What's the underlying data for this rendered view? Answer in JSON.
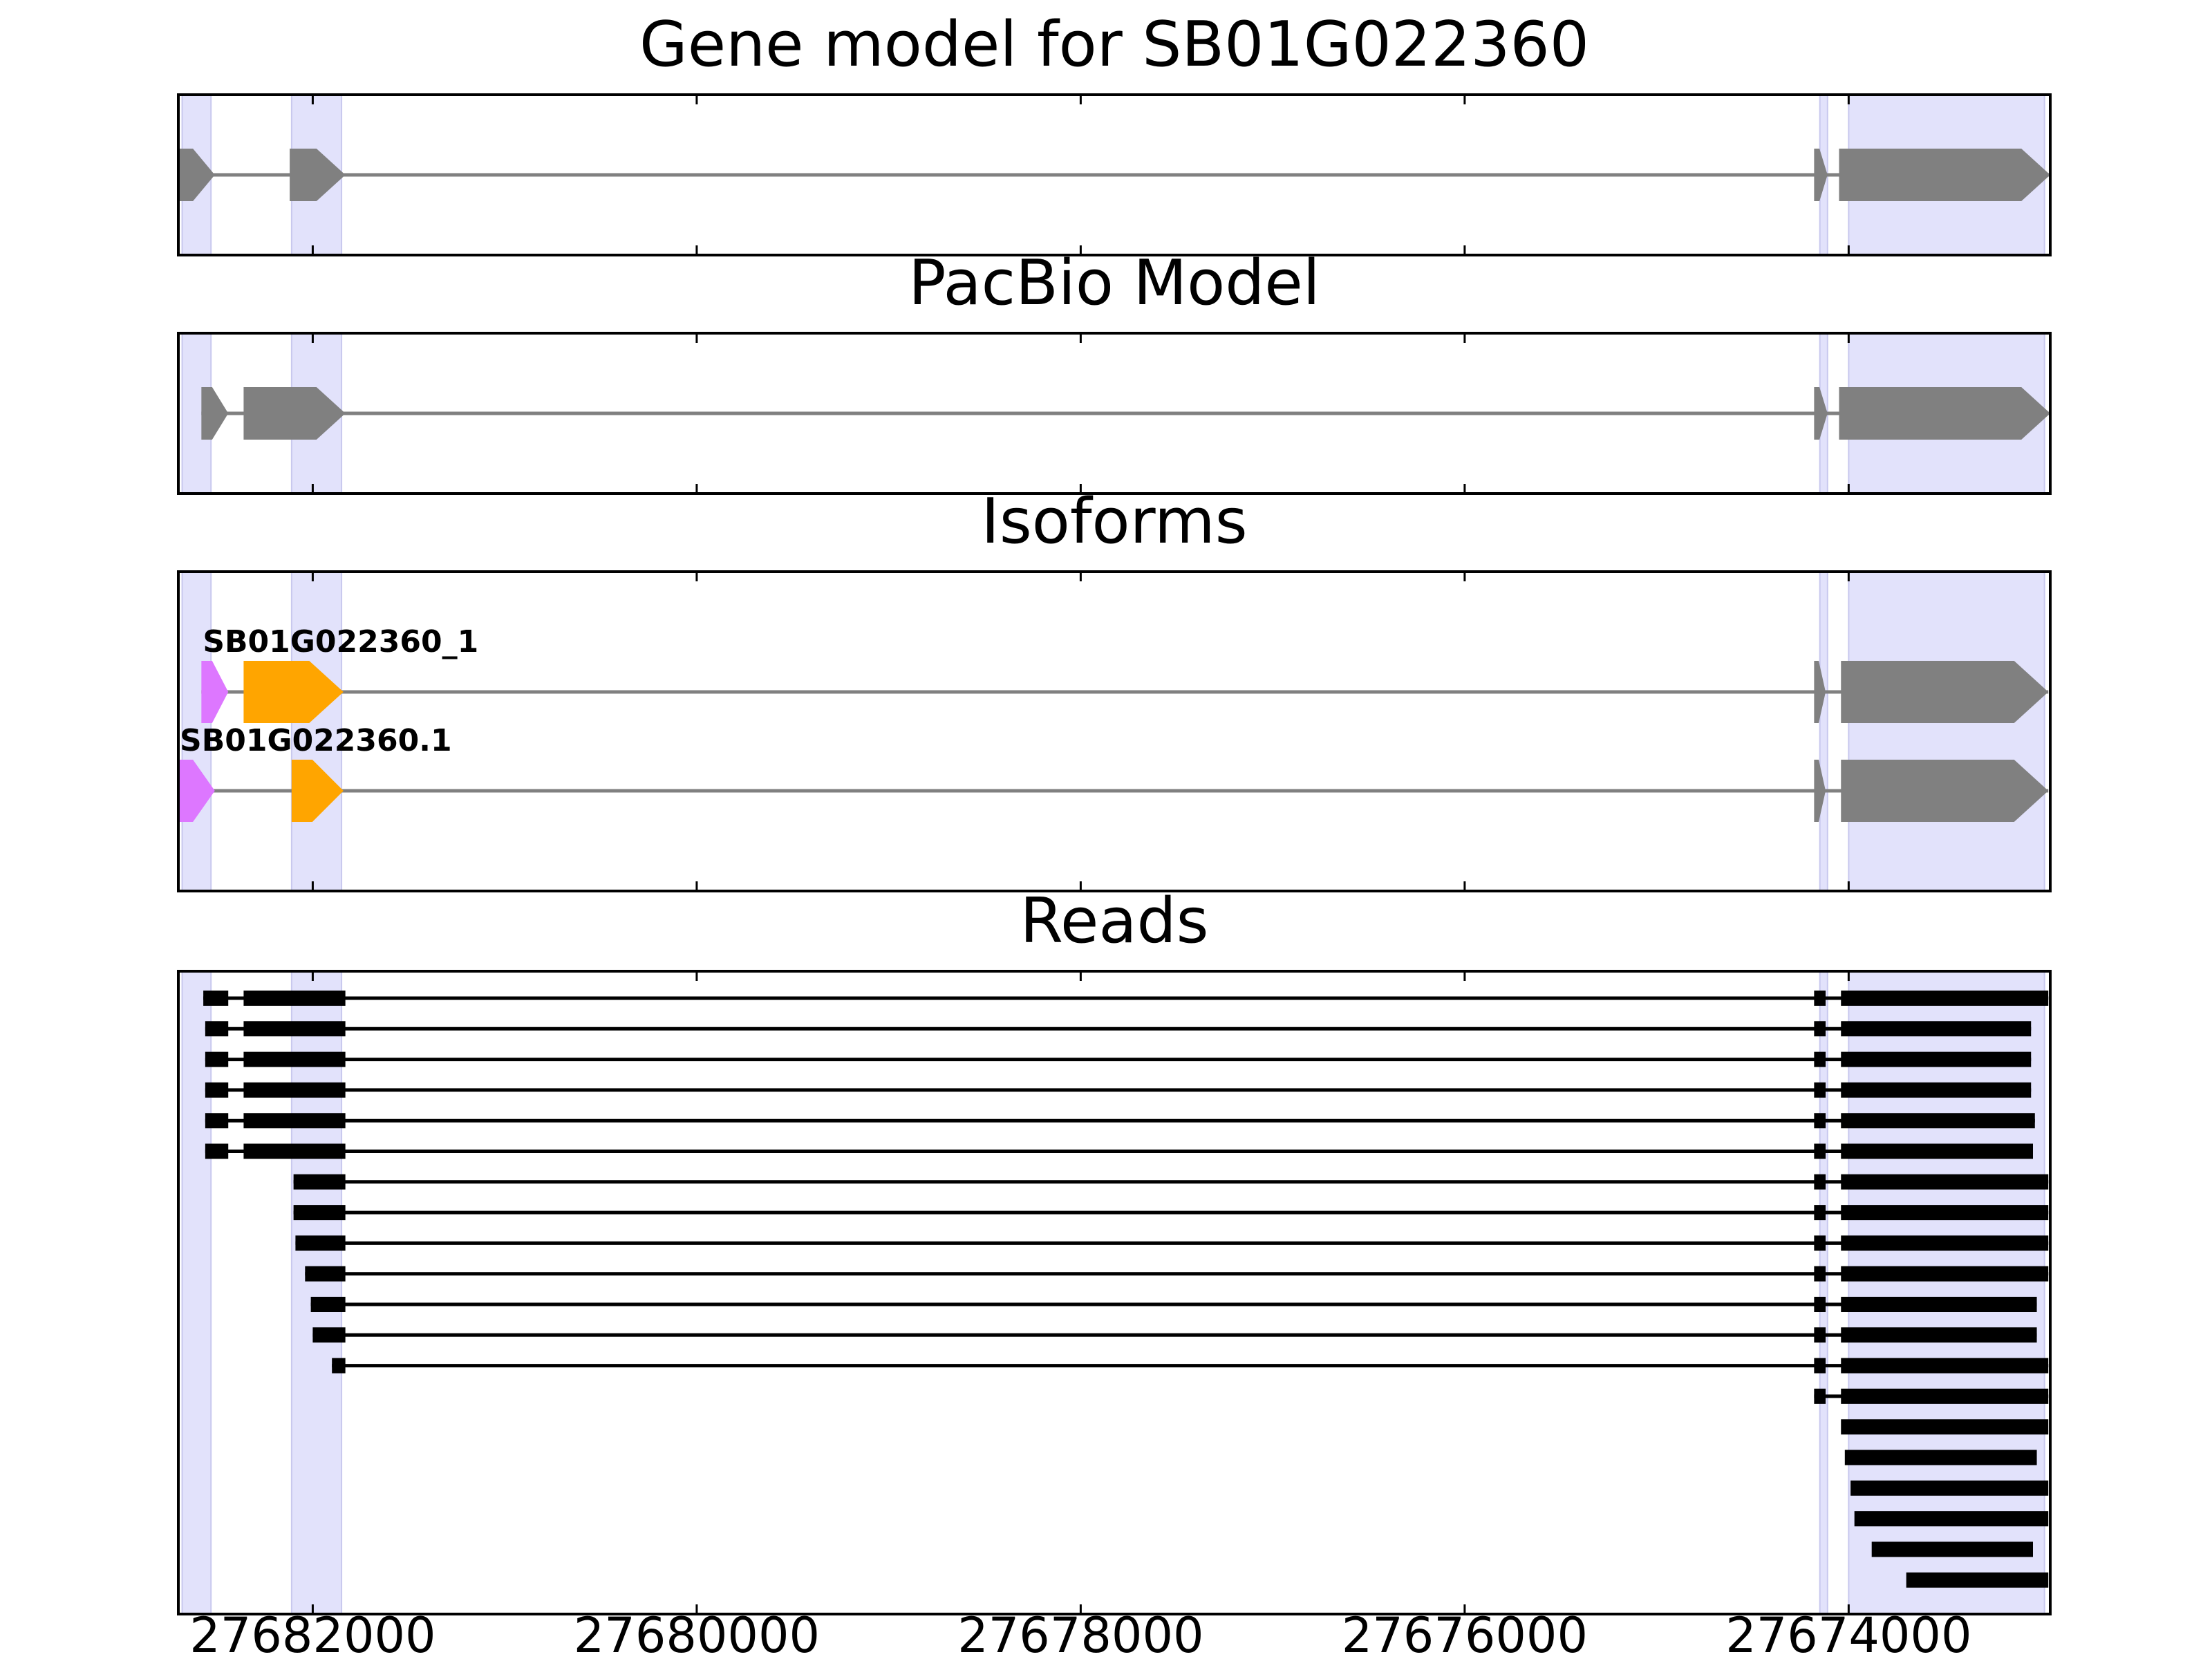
{
  "figure": {
    "panel_titles": [
      "Gene model for SB01G022360",
      "PacBio Model",
      "Isoforms",
      "Reads"
    ]
  },
  "colors": {
    "shade": "#e2e2fb",
    "shade_edge": "#c8c8ee",
    "model": "#808080",
    "utr5": "#dd77ff",
    "cds": "#ffa500",
    "reads": "#000000"
  },
  "chart_data": {
    "type": "gene-structure",
    "x_reversed": true,
    "xlim": [
      27682700,
      27672950
    ],
    "xticks": [
      27682000,
      27680000,
      27678000,
      27676000,
      27674000
    ],
    "xtick_labels": [
      "27682000",
      "27680000",
      "27678000",
      "27676000",
      "27674000"
    ],
    "shaded_regions": [
      [
        27682680,
        27682530
      ],
      [
        27682110,
        27681850
      ],
      [
        27674150,
        27674110
      ],
      [
        27674000,
        27672980
      ]
    ],
    "gene_model": {
      "span": [
        27682700,
        27672950
      ],
      "exons": [
        [
          27682700,
          27682510
        ],
        [
          27682120,
          27681830
        ],
        [
          27674180,
          27674110
        ],
        [
          27674050,
          27672950
        ]
      ]
    },
    "pacbio_model": {
      "span": [
        27682580,
        27672950
      ],
      "exons": [
        [
          27682580,
          27682440
        ],
        [
          27682360,
          27681830
        ],
        [
          27674180,
          27674110
        ],
        [
          27674050,
          27672950
        ]
      ]
    },
    "isoforms": [
      {
        "name": "SB01G022360_1",
        "span": [
          27682580,
          27672960
        ],
        "exons": [
          {
            "range": [
              27682580,
              27682440
            ],
            "type": "utr5"
          },
          {
            "range": [
              27682360,
              27681840
            ],
            "type": "cds"
          },
          {
            "range": [
              27674180,
              27674120
            ],
            "type": "utr3"
          },
          {
            "range": [
              27674040,
              27672960
            ],
            "type": "utr3"
          }
        ]
      },
      {
        "name": "SB01G022360.1",
        "span": [
          27682700,
          27672960
        ],
        "exons": [
          {
            "range": [
              27682700,
              27682510
            ],
            "type": "utr5"
          },
          {
            "range": [
              27682110,
              27681840
            ],
            "type": "cds"
          },
          {
            "range": [
              27674180,
              27674120
            ],
            "type": "utr3"
          },
          {
            "range": [
              27674040,
              27672960
            ],
            "type": "utr3"
          }
        ]
      }
    ],
    "reads": [
      {
        "exons": [
          [
            27682570,
            27682440
          ],
          [
            27682360,
            27681830
          ],
          [
            27674180,
            27674120
          ],
          [
            27674040,
            27672960
          ]
        ]
      },
      {
        "exons": [
          [
            27682560,
            27682440
          ],
          [
            27682360,
            27681830
          ],
          [
            27674180,
            27674120
          ],
          [
            27674040,
            27673050
          ]
        ]
      },
      {
        "exons": [
          [
            27682560,
            27682440
          ],
          [
            27682360,
            27681830
          ],
          [
            27674180,
            27674120
          ],
          [
            27674040,
            27673050
          ]
        ]
      },
      {
        "exons": [
          [
            27682560,
            27682440
          ],
          [
            27682360,
            27681830
          ],
          [
            27674180,
            27674120
          ],
          [
            27674040,
            27673050
          ]
        ]
      },
      {
        "exons": [
          [
            27682560,
            27682440
          ],
          [
            27682360,
            27681830
          ],
          [
            27674180,
            27674120
          ],
          [
            27674040,
            27673030
          ]
        ]
      },
      {
        "exons": [
          [
            27682560,
            27682440
          ],
          [
            27682360,
            27681830
          ],
          [
            27674180,
            27674120
          ],
          [
            27674040,
            27673040
          ]
        ]
      },
      {
        "exons": [
          [
            27682100,
            27681830
          ],
          [
            27674180,
            27674120
          ],
          [
            27674040,
            27672960
          ]
        ]
      },
      {
        "exons": [
          [
            27682100,
            27681830
          ],
          [
            27674180,
            27674120
          ],
          [
            27674040,
            27672960
          ]
        ]
      },
      {
        "exons": [
          [
            27682090,
            27681830
          ],
          [
            27674180,
            27674120
          ],
          [
            27674040,
            27672960
          ]
        ]
      },
      {
        "exons": [
          [
            27682040,
            27681830
          ],
          [
            27674180,
            27674120
          ],
          [
            27674040,
            27672960
          ]
        ]
      },
      {
        "exons": [
          [
            27682010,
            27681830
          ],
          [
            27674180,
            27674120
          ],
          [
            27674040,
            27673020
          ]
        ]
      },
      {
        "exons": [
          [
            27682000,
            27681830
          ],
          [
            27674180,
            27674120
          ],
          [
            27674040,
            27673020
          ]
        ]
      },
      {
        "exons": [
          [
            27681900,
            27681830
          ],
          [
            27674180,
            27674120
          ],
          [
            27674040,
            27672960
          ]
        ]
      },
      {
        "exons": [
          [
            27674180,
            27674120
          ],
          [
            27674040,
            27672960
          ]
        ]
      },
      {
        "exons": [
          [
            27674040,
            27672960
          ]
        ]
      },
      {
        "exons": [
          [
            27674020,
            27673020
          ]
        ]
      },
      {
        "exons": [
          [
            27673990,
            27672960
          ]
        ]
      },
      {
        "exons": [
          [
            27673970,
            27672960
          ]
        ]
      },
      {
        "exons": [
          [
            27673880,
            27673040
          ]
        ]
      },
      {
        "exons": [
          [
            27673700,
            27672960
          ]
        ]
      }
    ]
  }
}
